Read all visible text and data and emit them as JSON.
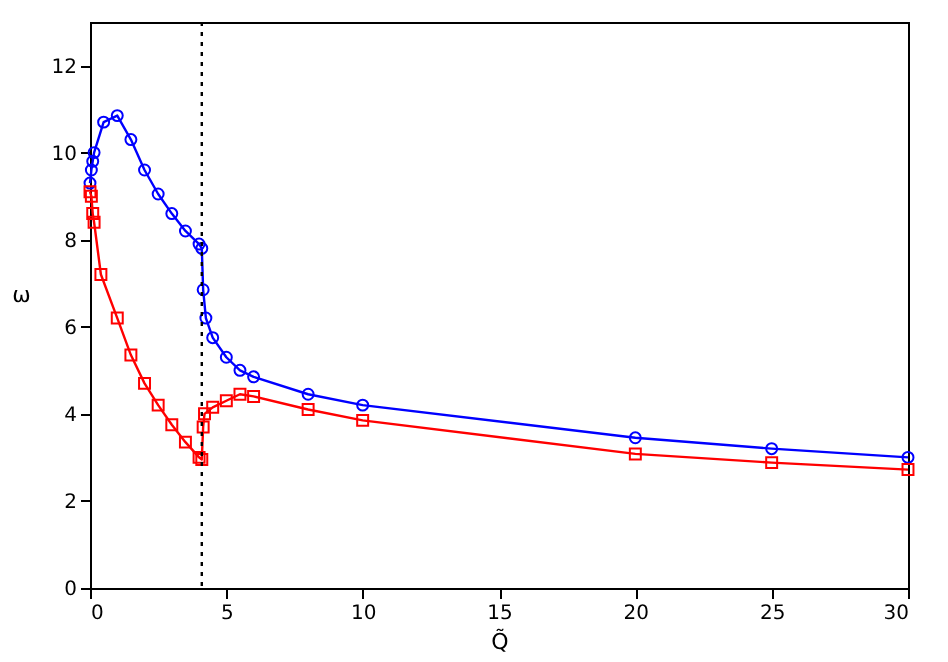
{
  "chart_data": {
    "type": "line",
    "xlabel": "Q̃",
    "ylabel": "ω",
    "xlim": [
      0,
      30
    ],
    "ylim": [
      0,
      13
    ],
    "xticks": [
      0,
      5,
      10,
      15,
      20,
      25,
      30
    ],
    "yticks": [
      0,
      2,
      4,
      6,
      8,
      10,
      12
    ],
    "grid": false,
    "series": [
      {
        "color": "#0000ff",
        "marker": "circle",
        "x": [
          0,
          0.05,
          0.1,
          0.15,
          0.5,
          1,
          1.5,
          2,
          2.5,
          3,
          3.5,
          4,
          4.1,
          4.15,
          4.25,
          4.5,
          5,
          5.5,
          6,
          8,
          10,
          20,
          25,
          30
        ],
        "values": [
          9.3,
          9.6,
          9.8,
          10.0,
          10.7,
          10.85,
          10.3,
          9.6,
          9.05,
          8.6,
          8.2,
          7.9,
          7.8,
          6.85,
          6.2,
          5.75,
          5.3,
          5.0,
          4.85,
          4.45,
          4.2,
          3.45,
          3.2,
          3.0
        ]
      },
      {
        "color": "#ff0000",
        "marker": "square",
        "x": [
          0,
          0.05,
          0.1,
          0.15,
          0.4,
          1,
          1.5,
          2,
          2.5,
          3,
          3.5,
          4,
          4.1,
          4.15,
          4.2,
          4.5,
          5,
          5.5,
          6,
          8,
          10,
          20,
          25,
          30
        ],
        "values": [
          9.1,
          9.0,
          8.6,
          8.4,
          7.2,
          6.2,
          5.35,
          4.7,
          4.2,
          3.75,
          3.35,
          3.0,
          2.95,
          3.7,
          4.0,
          4.15,
          4.3,
          4.45,
          4.4,
          4.1,
          3.85,
          3.08,
          2.88,
          2.72
        ]
      }
    ],
    "ref_lines": [
      {
        "axis": "x",
        "value": 4.1,
        "color": "#000000",
        "line_style": "dotted"
      }
    ]
  }
}
